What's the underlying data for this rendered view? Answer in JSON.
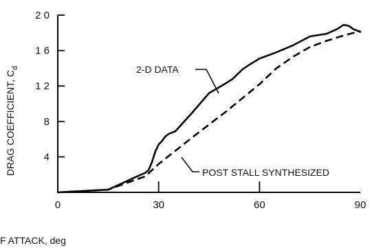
{
  "chart_data": {
    "type": "line",
    "title": "",
    "xlabel": "F ATTACK, deg",
    "ylabel": "DRAG COEFFICIENT, C",
    "ylabel_subscript": "d",
    "xlim": [
      0,
      90
    ],
    "ylim": [
      0,
      2.0
    ],
    "grid": false,
    "x_ticks": [
      {
        "value": 0,
        "label": "0"
      },
      {
        "value": 30,
        "label": "30"
      },
      {
        "value": 60,
        "label": "60"
      },
      {
        "value": 90,
        "label": "90"
      }
    ],
    "y_ticks": [
      {
        "value": 0.4,
        "label": "4"
      },
      {
        "value": 0.8,
        "label": "8"
      },
      {
        "value": 1.2,
        "label": "1 2"
      },
      {
        "value": 1.6,
        "label": "1 6"
      },
      {
        "value": 2.0,
        "label": "2 0"
      }
    ],
    "series": [
      {
        "name": "2-D DATA",
        "style": "solid",
        "x": [
          0,
          15,
          19,
          23,
          26,
          27,
          28,
          29,
          30,
          31,
          32,
          33,
          35,
          40,
          45,
          50,
          52,
          55,
          57,
          60,
          65,
          70,
          75,
          80,
          83,
          85,
          86.5,
          88,
          90
        ],
        "y": [
          0.0,
          0.03,
          0.1,
          0.17,
          0.22,
          0.25,
          0.34,
          0.46,
          0.54,
          0.58,
          0.63,
          0.66,
          0.69,
          0.9,
          1.12,
          1.23,
          1.28,
          1.39,
          1.44,
          1.51,
          1.58,
          1.66,
          1.76,
          1.79,
          1.84,
          1.89,
          1.88,
          1.84,
          1.81
        ]
      },
      {
        "name": "POST STALL SYNTHESIZED",
        "style": "dashed",
        "x": [
          0,
          15,
          20,
          26,
          30,
          40,
          50,
          60,
          65,
          70,
          75,
          80,
          85,
          90
        ],
        "y": [
          0.0,
          0.03,
          0.1,
          0.18,
          0.32,
          0.62,
          0.91,
          1.22,
          1.4,
          1.53,
          1.64,
          1.71,
          1.77,
          1.82
        ]
      }
    ],
    "annotations": [
      {
        "text": "2-D DATA",
        "series": "2-D DATA"
      },
      {
        "text": "POST STALL SYNTHESIZED",
        "series": "POST STALL SYNTHESIZED"
      }
    ]
  }
}
